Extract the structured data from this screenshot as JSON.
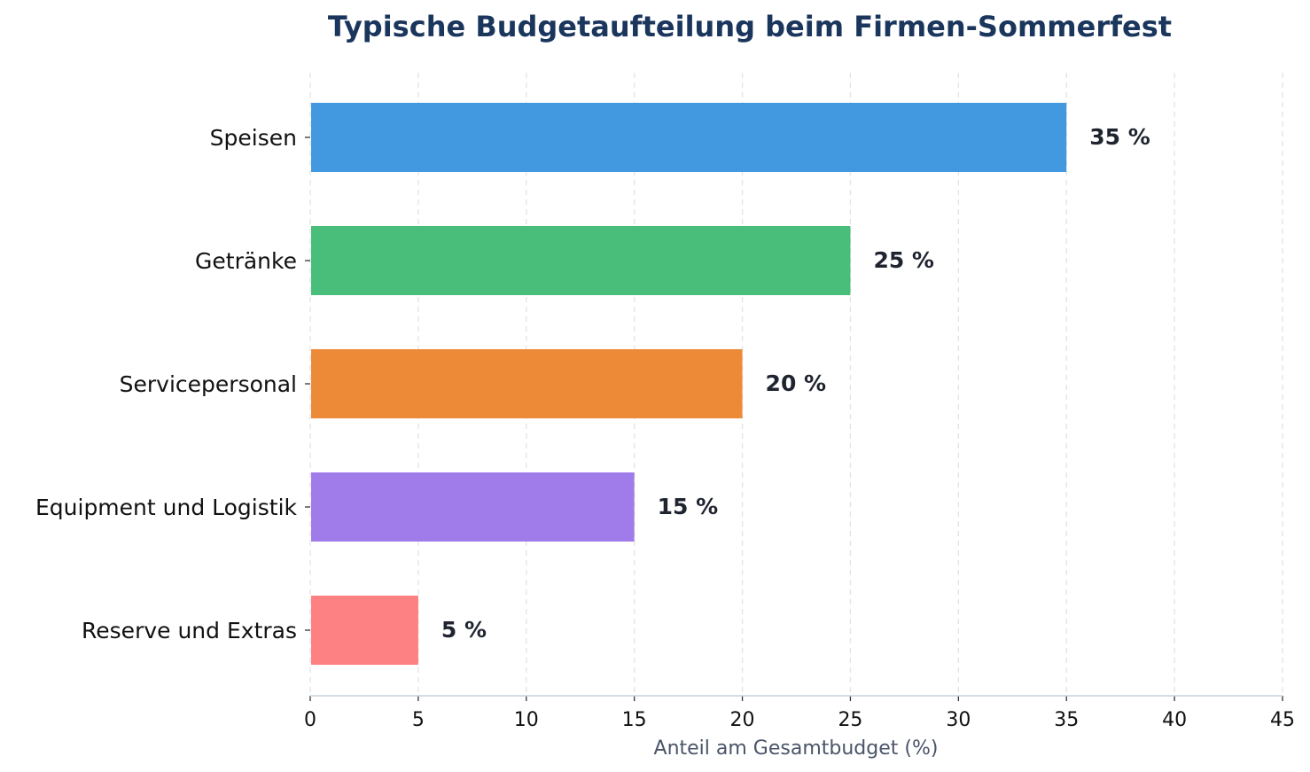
{
  "chart_data": {
    "type": "bar",
    "orientation": "horizontal",
    "title": "Typische Budgetaufteilung beim Firmen-Sommerfest",
    "xlabel": "Anteil am Gesamtbudget (%)",
    "ylabel": "",
    "xlim": [
      0,
      45
    ],
    "xticks": [
      0,
      5,
      10,
      15,
      20,
      25,
      30,
      35,
      40,
      45
    ],
    "grid": "vertical-dashed",
    "categories": [
      "Speisen",
      "Getränke",
      "Servicepersonal",
      "Equipment und Logistik",
      "Reserve und Extras"
    ],
    "values": [
      35,
      25,
      20,
      15,
      5
    ],
    "value_labels": [
      "35 %",
      "25 %",
      "20 %",
      "15 %",
      "5 %"
    ],
    "colors": [
      "#4399e0",
      "#49bd7a",
      "#ed8a38",
      "#a07cea",
      "#fd8082"
    ],
    "colors_meta": {
      "title": "#1b365d",
      "axis_label": "#4a5568",
      "value_label": "#1f2430"
    }
  }
}
